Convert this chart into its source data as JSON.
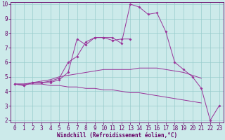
{
  "xlabel": "Windchill (Refroidissement éolien,°C)",
  "x_values": [
    0,
    1,
    2,
    3,
    4,
    5,
    6,
    7,
    8,
    9,
    10,
    11,
    12,
    13,
    14,
    15,
    16,
    17,
    18,
    19,
    20,
    21,
    22,
    23
  ],
  "line1": [
    4.5,
    4.4,
    4.6,
    4.6,
    4.6,
    4.8,
    5.3,
    7.6,
    7.2,
    7.7,
    7.7,
    7.7,
    7.3,
    10.0,
    9.8,
    9.3,
    9.4,
    8.1,
    6.0,
    5.5,
    5.0,
    4.2,
    2.0,
    3.0
  ],
  "line2": [
    4.5,
    4.4,
    4.6,
    4.6,
    4.7,
    4.9,
    6.0,
    6.4,
    7.4,
    7.7,
    7.7,
    7.5,
    7.6,
    7.6,
    null,
    null,
    null,
    null,
    null,
    null,
    null,
    null,
    null,
    null
  ],
  "line3": [
    4.5,
    4.5,
    4.6,
    4.7,
    4.8,
    5.0,
    5.1,
    5.2,
    5.3,
    5.4,
    5.5,
    5.5,
    5.5,
    5.5,
    5.6,
    5.6,
    5.6,
    5.5,
    5.4,
    5.3,
    5.1,
    4.9,
    null,
    null
  ],
  "line4": [
    4.5,
    4.5,
    4.5,
    4.5,
    4.4,
    4.4,
    4.3,
    4.3,
    4.2,
    4.2,
    4.1,
    4.1,
    4.0,
    3.9,
    3.9,
    3.8,
    3.7,
    3.6,
    3.5,
    3.4,
    3.3,
    3.2,
    null,
    null
  ],
  "bg_color": "#cceaea",
  "line_color": "#993399",
  "grid_color": "#99cccc",
  "marker_size": 2.0,
  "ylim": [
    2,
    10
  ],
  "xlim": [
    -0.5,
    23.5
  ],
  "yticks": [
    2,
    3,
    4,
    5,
    6,
    7,
    8,
    9,
    10
  ],
  "xticks": [
    0,
    1,
    2,
    3,
    4,
    5,
    6,
    7,
    8,
    9,
    10,
    11,
    12,
    13,
    14,
    15,
    16,
    17,
    18,
    19,
    20,
    21,
    22,
    23
  ],
  "tick_fontsize": 5.5,
  "xlabel_fontsize": 5.5,
  "tick_color": "#660066",
  "spine_color": "#660066"
}
